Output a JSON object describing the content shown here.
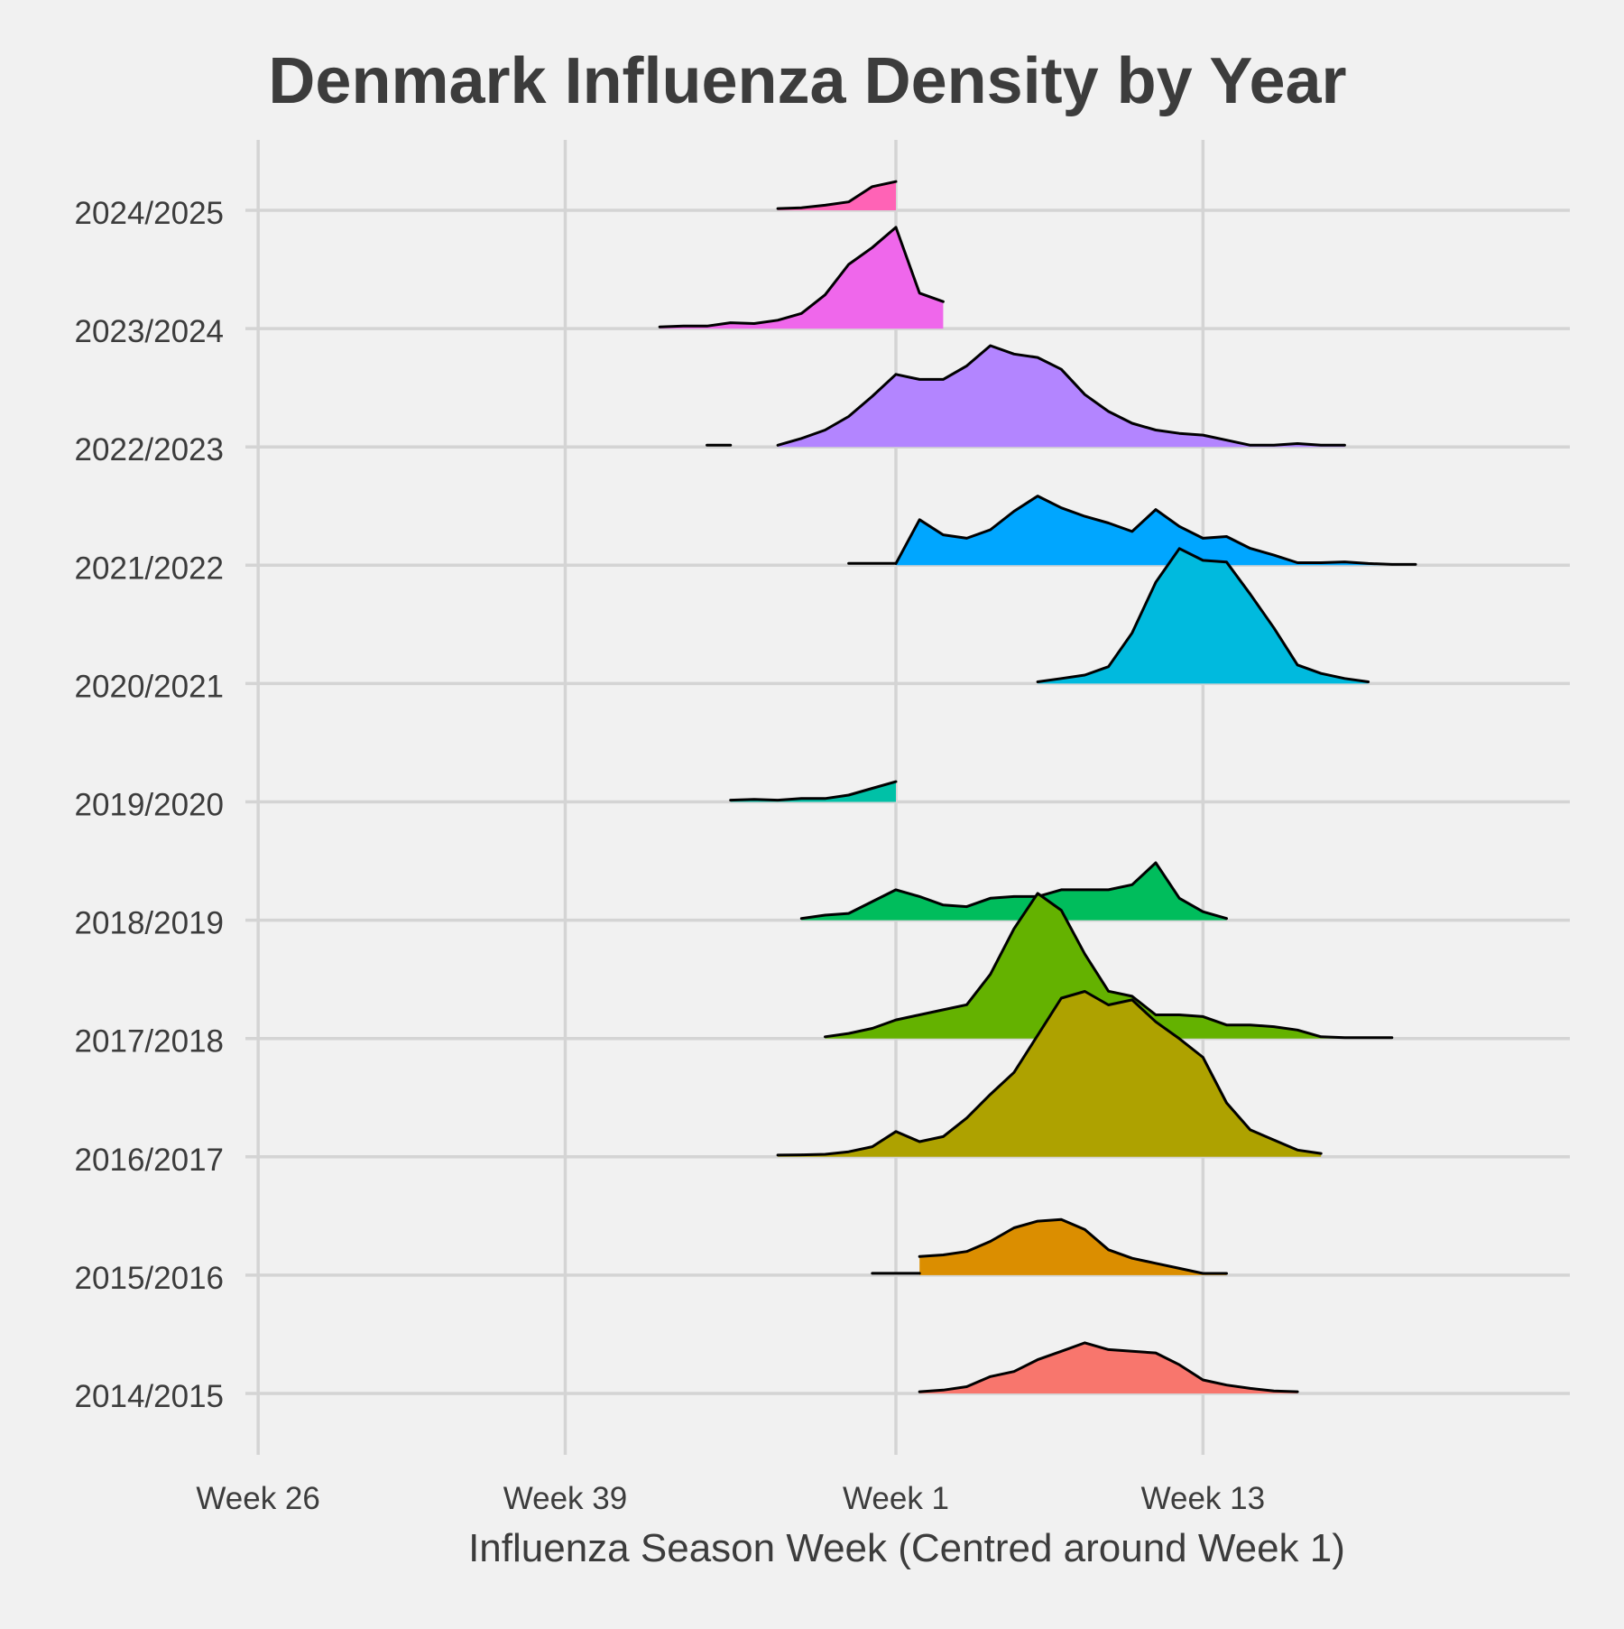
{
  "chart_data": {
    "type": "area",
    "subtype": "ridgeline",
    "title": "Denmark Influenza Density by Year",
    "xlabel": "Influenza Season Week (Centred around Week 1)",
    "ylabel": "",
    "x_ticks": [
      {
        "label": "Week 26",
        "value": -27
      },
      {
        "label": "Week 39",
        "value": -14
      },
      {
        "label": "Week 1",
        "value": 0
      },
      {
        "label": "Week 13",
        "value": 13
      }
    ],
    "xlim": [
      -30,
      28
    ],
    "grid": true,
    "legend": "none",
    "series": [
      {
        "name": "2014/2015",
        "color": "#F8766D",
        "baseline_only": [],
        "points": [
          [
            1,
            0.01
          ],
          [
            2,
            0.02
          ],
          [
            3,
            0.04
          ],
          [
            4,
            0.1
          ],
          [
            5,
            0.13
          ],
          [
            6,
            0.2
          ],
          [
            7,
            0.25
          ],
          [
            8,
            0.3
          ],
          [
            9,
            0.26
          ],
          [
            10,
            0.25
          ],
          [
            11,
            0.24
          ],
          [
            12,
            0.17
          ],
          [
            13,
            0.08
          ],
          [
            14,
            0.05
          ],
          [
            15,
            0.03
          ],
          [
            16,
            0.015
          ],
          [
            17,
            0.01
          ]
        ]
      },
      {
        "name": "2015/2016",
        "color": "#DB8E00",
        "baseline_only": [
          [
            -1,
            1
          ]
        ],
        "points": [
          [
            1,
            0.11
          ],
          [
            2,
            0.12
          ],
          [
            3,
            0.14
          ],
          [
            4,
            0.2
          ],
          [
            5,
            0.28
          ],
          [
            6,
            0.32
          ],
          [
            7,
            0.33
          ],
          [
            8,
            0.27
          ],
          [
            9,
            0.15
          ],
          [
            10,
            0.1
          ],
          [
            11,
            0.07
          ],
          [
            12,
            0.04
          ],
          [
            13,
            0.01
          ],
          [
            14,
            0.01
          ]
        ]
      },
      {
        "name": "2016/2017",
        "color": "#AEA200",
        "baseline_only": [],
        "points": [
          [
            -5,
            0.01
          ],
          [
            -4,
            0.012
          ],
          [
            -3,
            0.015
          ],
          [
            -2,
            0.03
          ],
          [
            -1,
            0.06
          ],
          [
            0,
            0.15
          ],
          [
            1,
            0.09
          ],
          [
            2,
            0.12
          ],
          [
            3,
            0.23
          ],
          [
            4,
            0.37
          ],
          [
            5,
            0.5
          ],
          [
            6,
            0.72
          ],
          [
            7,
            0.94
          ],
          [
            8,
            0.98
          ],
          [
            9,
            0.9
          ],
          [
            10,
            0.93
          ],
          [
            11,
            0.8
          ],
          [
            12,
            0.7
          ],
          [
            13,
            0.59
          ],
          [
            14,
            0.32
          ],
          [
            15,
            0.16
          ],
          [
            16,
            0.1
          ],
          [
            17,
            0.04
          ],
          [
            18,
            0.02
          ]
        ]
      },
      {
        "name": "2017/2018",
        "color": "#64B200",
        "baseline_only": [],
        "points": [
          [
            -3,
            0.01
          ],
          [
            -2,
            0.03
          ],
          [
            -1,
            0.06
          ],
          [
            0,
            0.11
          ],
          [
            1,
            0.14
          ],
          [
            2,
            0.17
          ],
          [
            3,
            0.2
          ],
          [
            4,
            0.38
          ],
          [
            5,
            0.65
          ],
          [
            6,
            0.86
          ],
          [
            7,
            0.76
          ],
          [
            8,
            0.5
          ],
          [
            9,
            0.28
          ],
          [
            10,
            0.25
          ],
          [
            11,
            0.14
          ],
          [
            12,
            0.14
          ],
          [
            13,
            0.13
          ],
          [
            14,
            0.08
          ],
          [
            15,
            0.08
          ],
          [
            16,
            0.07
          ],
          [
            17,
            0.05
          ],
          [
            18,
            0.01
          ],
          [
            19,
            0.005
          ],
          [
            20,
            0.005
          ],
          [
            21,
            0.005
          ]
        ]
      },
      {
        "name": "2018/2019",
        "color": "#00BD5C",
        "baseline_only": [],
        "points": [
          [
            -4,
            0.01
          ],
          [
            -3,
            0.03
          ],
          [
            -2,
            0.04
          ],
          [
            -1,
            0.11
          ],
          [
            0,
            0.18
          ],
          [
            1,
            0.14
          ],
          [
            2,
            0.09
          ],
          [
            3,
            0.08
          ],
          [
            4,
            0.13
          ],
          [
            5,
            0.14
          ],
          [
            6,
            0.14
          ],
          [
            7,
            0.18
          ],
          [
            8,
            0.18
          ],
          [
            9,
            0.18
          ],
          [
            10,
            0.21
          ],
          [
            11,
            0.34
          ],
          [
            12,
            0.13
          ],
          [
            13,
            0.05
          ],
          [
            14,
            0.01
          ]
        ]
      },
      {
        "name": "2019/2020",
        "color": "#00C1A7",
        "baseline_only": [],
        "points": [
          [
            -7,
            0.01
          ],
          [
            -6,
            0.015
          ],
          [
            -5,
            0.01
          ],
          [
            -4,
            0.02
          ],
          [
            -3,
            0.02
          ],
          [
            -2,
            0.04
          ],
          [
            -1,
            0.08
          ],
          [
            0,
            0.12
          ]
        ]
      },
      {
        "name": "2020/2021",
        "color": "#00BADE",
        "baseline_only": [],
        "points": [
          [
            6,
            0.01
          ],
          [
            7,
            0.03
          ],
          [
            8,
            0.05
          ],
          [
            9,
            0.1
          ],
          [
            10,
            0.3
          ],
          [
            11,
            0.6
          ],
          [
            12,
            0.8
          ],
          [
            13,
            0.73
          ],
          [
            14,
            0.72
          ],
          [
            15,
            0.53
          ],
          [
            16,
            0.33
          ],
          [
            17,
            0.11
          ],
          [
            18,
            0.06
          ],
          [
            19,
            0.03
          ],
          [
            20,
            0.01
          ]
        ]
      },
      {
        "name": "2021/2022",
        "color": "#00A6FF",
        "baseline_only": [
          [
            -2,
            0
          ]
        ],
        "points": [
          [
            0,
            0.01
          ],
          [
            1,
            0.27
          ],
          [
            2,
            0.18
          ],
          [
            3,
            0.16
          ],
          [
            4,
            0.21
          ],
          [
            5,
            0.32
          ],
          [
            6,
            0.41
          ],
          [
            7,
            0.34
          ],
          [
            8,
            0.29
          ],
          [
            9,
            0.25
          ],
          [
            10,
            0.2
          ],
          [
            11,
            0.33
          ],
          [
            12,
            0.23
          ],
          [
            13,
            0.16
          ],
          [
            14,
            0.17
          ],
          [
            15,
            0.1
          ],
          [
            16,
            0.06
          ],
          [
            17,
            0.015
          ],
          [
            18,
            0.015
          ],
          [
            19,
            0.02
          ],
          [
            20,
            0.01
          ],
          [
            21,
            0.005
          ],
          [
            22,
            0.005
          ]
        ]
      },
      {
        "name": "2022/2023",
        "color": "#B385FF",
        "baseline_only": [
          [
            -8,
            -7
          ]
        ],
        "points": [
          [
            -5,
            0.01
          ],
          [
            -4,
            0.05
          ],
          [
            -3,
            0.1
          ],
          [
            -2,
            0.18
          ],
          [
            -1,
            0.3
          ],
          [
            0,
            0.43
          ],
          [
            1,
            0.4
          ],
          [
            2,
            0.4
          ],
          [
            3,
            0.48
          ],
          [
            4,
            0.6
          ],
          [
            5,
            0.55
          ],
          [
            6,
            0.53
          ],
          [
            7,
            0.46
          ],
          [
            8,
            0.31
          ],
          [
            9,
            0.21
          ],
          [
            10,
            0.14
          ],
          [
            11,
            0.1
          ],
          [
            12,
            0.08
          ],
          [
            13,
            0.07
          ],
          [
            14,
            0.04
          ],
          [
            15,
            0.01
          ],
          [
            16,
            0.01
          ],
          [
            17,
            0.02
          ],
          [
            18,
            0.01
          ],
          [
            19,
            0.01
          ]
        ]
      },
      {
        "name": "2023/2024",
        "color": "#EF67EB",
        "baseline_only": [],
        "points": [
          [
            -10,
            0.01
          ],
          [
            -9,
            0.015
          ],
          [
            -8,
            0.015
          ],
          [
            -7,
            0.035
          ],
          [
            -6,
            0.03
          ],
          [
            -5,
            0.05
          ],
          [
            -4,
            0.09
          ],
          [
            -3,
            0.2
          ],
          [
            -2,
            0.38
          ],
          [
            -1,
            0.48
          ],
          [
            0,
            0.6
          ],
          [
            1,
            0.21
          ],
          [
            2,
            0.16
          ]
        ]
      },
      {
        "name": "2024/2025",
        "color": "#FF63B6",
        "baseline_only": [],
        "points": [
          [
            -5,
            0.01
          ],
          [
            -4,
            0.015
          ],
          [
            -3,
            0.03
          ],
          [
            -2,
            0.05
          ],
          [
            -1,
            0.14
          ],
          [
            0,
            0.17
          ]
        ]
      }
    ]
  }
}
